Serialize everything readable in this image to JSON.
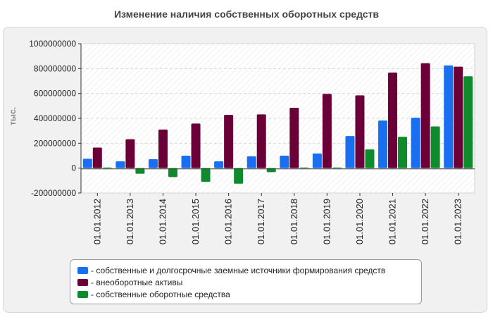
{
  "chart_data": {
    "type": "bar",
    "title": "Изменение наличия собственных оборотных средств",
    "xlabel": "",
    "ylabel": "тыс.",
    "ylim": [
      -200000000,
      1000000000
    ],
    "yticks": [
      -200000000,
      0,
      200000000,
      400000000,
      600000000,
      800000000,
      1000000000
    ],
    "ytick_labels": [
      "-200000000",
      "0",
      "200000000",
      "400000000",
      "600000000",
      "800000000",
      "1000000000"
    ],
    "grid": true,
    "legend_position": "bottom",
    "categories": [
      "01.01.2012",
      "01.01.2013",
      "01.01.2014",
      "01.01.2015",
      "01.01.2016",
      "01.01.2017",
      "01.01.2018",
      "01.01.2019",
      "01.01.2020",
      "01.01.2021",
      "01.01.2022",
      "01.01.2023"
    ],
    "series": [
      {
        "name": "собственные и долгосрочные заемные источники формирования средств",
        "color": "#1a6ef0",
        "values": [
          75000000,
          55000000,
          72000000,
          100000000,
          55000000,
          95000000,
          100000000,
          118000000,
          258000000,
          382000000,
          405000000,
          825000000
        ]
      },
      {
        "name": "внеоборотные активы",
        "color": "#6b0038",
        "values": [
          165000000,
          232000000,
          310000000,
          358000000,
          428000000,
          432000000,
          485000000,
          597000000,
          585000000,
          768000000,
          843000000,
          815000000
        ]
      },
      {
        "name": "собственные оборотные средства",
        "color": "#0f8a2c",
        "values": [
          5000000,
          -45000000,
          -72000000,
          -110000000,
          -125000000,
          -32000000,
          5000000,
          5000000,
          150000000,
          252000000,
          335000000,
          738000000
        ]
      }
    ]
  }
}
